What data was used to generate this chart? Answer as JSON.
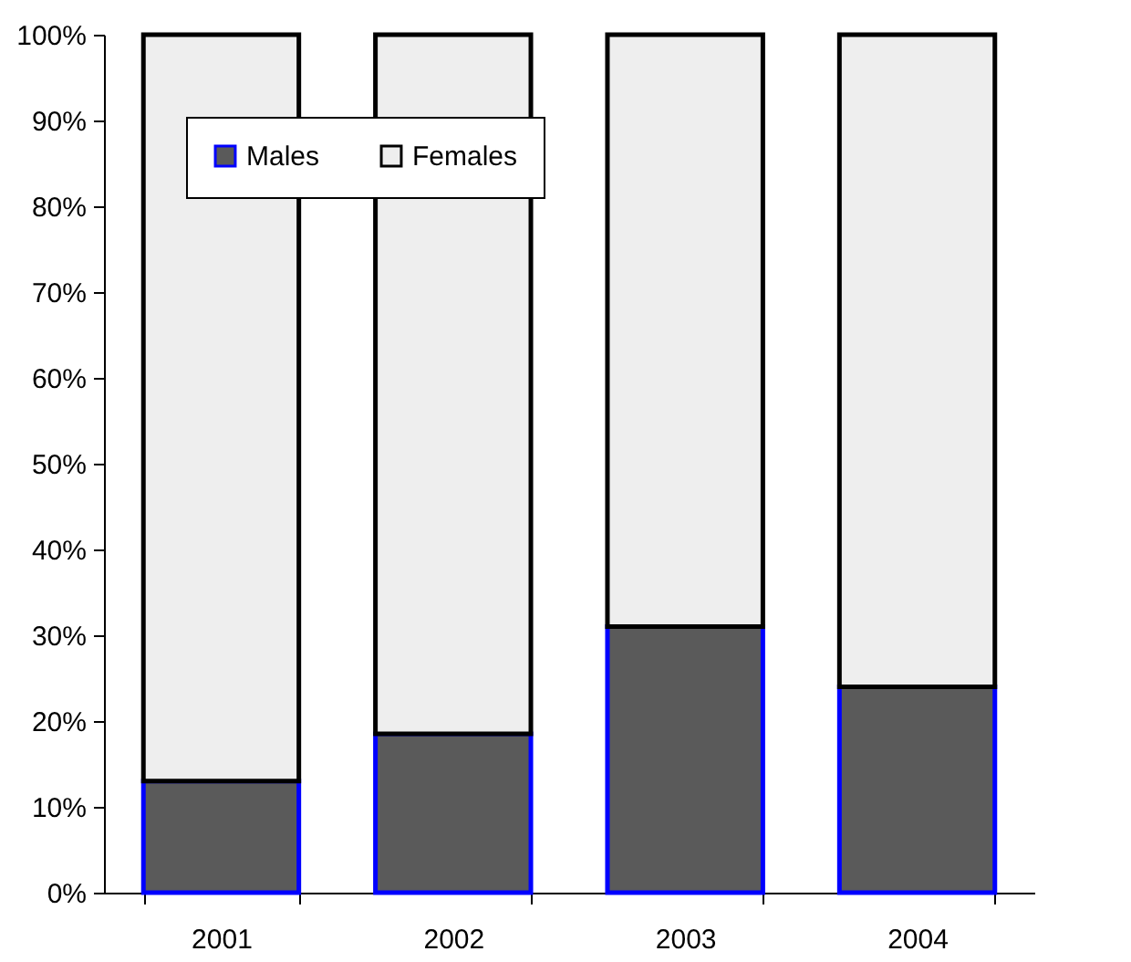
{
  "chart_data": {
    "type": "bar",
    "stacked": true,
    "categories": [
      "2001",
      "2002",
      "2003",
      "2004"
    ],
    "series": [
      {
        "name": "Males",
        "color": "#5a5a5a",
        "values": [
          13,
          18.5,
          31,
          24
        ]
      },
      {
        "name": "Females",
        "color": "#eeeeee",
        "values": [
          87,
          81.5,
          69,
          76
        ]
      }
    ],
    "ylim": [
      0,
      100
    ],
    "yticks": [
      {
        "value": 0,
        "label": "0%"
      },
      {
        "value": 10,
        "label": "10%"
      },
      {
        "value": 20,
        "label": "20%"
      },
      {
        "value": 30,
        "label": "30%"
      },
      {
        "value": 40,
        "label": "40%"
      },
      {
        "value": 50,
        "label": "50%"
      },
      {
        "value": 60,
        "label": "60%"
      },
      {
        "value": 70,
        "label": "70%"
      },
      {
        "value": 80,
        "label": "80%"
      },
      {
        "value": 90,
        "label": "90%"
      },
      {
        "value": 100,
        "label": "100%"
      }
    ],
    "grid": false,
    "legend": "top left"
  }
}
